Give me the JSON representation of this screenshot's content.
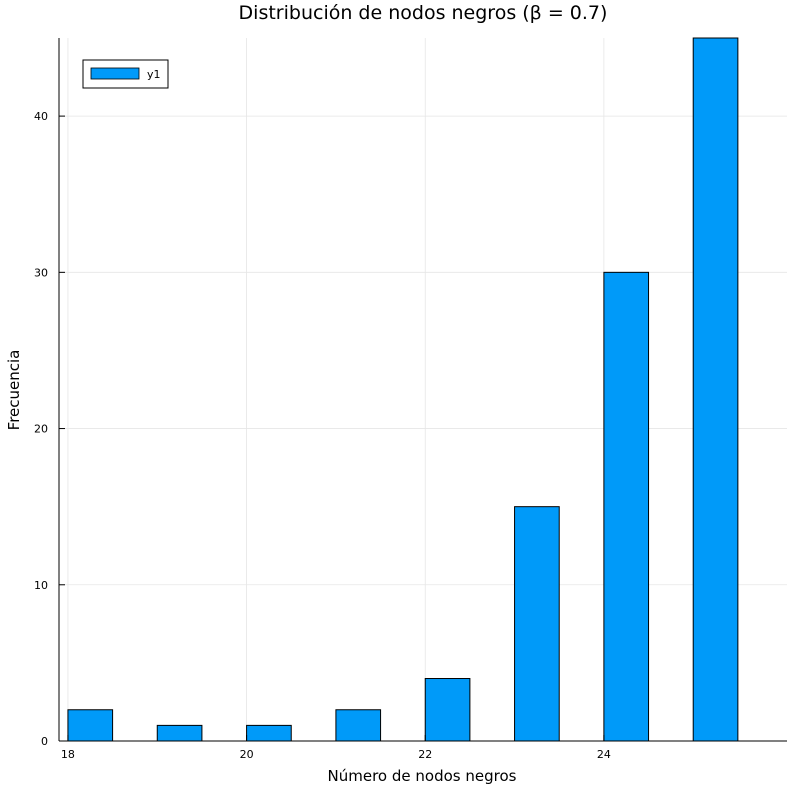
{
  "chart_data": {
    "type": "bar",
    "title": "Distribución de nodos negros (β = 0.7)",
    "xlabel": "Número de nodos negros",
    "ylabel": "Frecuencia",
    "x_ticks": [
      18,
      20,
      22,
      24
    ],
    "y_ticks": [
      0,
      10,
      20,
      30,
      40
    ],
    "xlim": [
      17.9,
      26.05
    ],
    "ylim": [
      0,
      45
    ],
    "grid": true,
    "legend": {
      "position": "top-left",
      "entries": [
        "y1"
      ]
    },
    "bars": [
      {
        "x0": 18.0,
        "x1": 18.5,
        "value": 2
      },
      {
        "x0": 19.0,
        "x1": 19.5,
        "value": 1
      },
      {
        "x0": 20.0,
        "x1": 20.5,
        "value": 1
      },
      {
        "x0": 21.0,
        "x1": 21.5,
        "value": 2
      },
      {
        "x0": 22.0,
        "x1": 22.5,
        "value": 4
      },
      {
        "x0": 23.0,
        "x1": 23.5,
        "value": 15
      },
      {
        "x0": 24.0,
        "x1": 24.5,
        "value": 30
      },
      {
        "x0": 25.0,
        "x1": 25.5,
        "value": 45
      }
    ],
    "colors": {
      "bar": "#009af9",
      "stroke": "#000000",
      "grid": "#e6e6e6"
    }
  }
}
